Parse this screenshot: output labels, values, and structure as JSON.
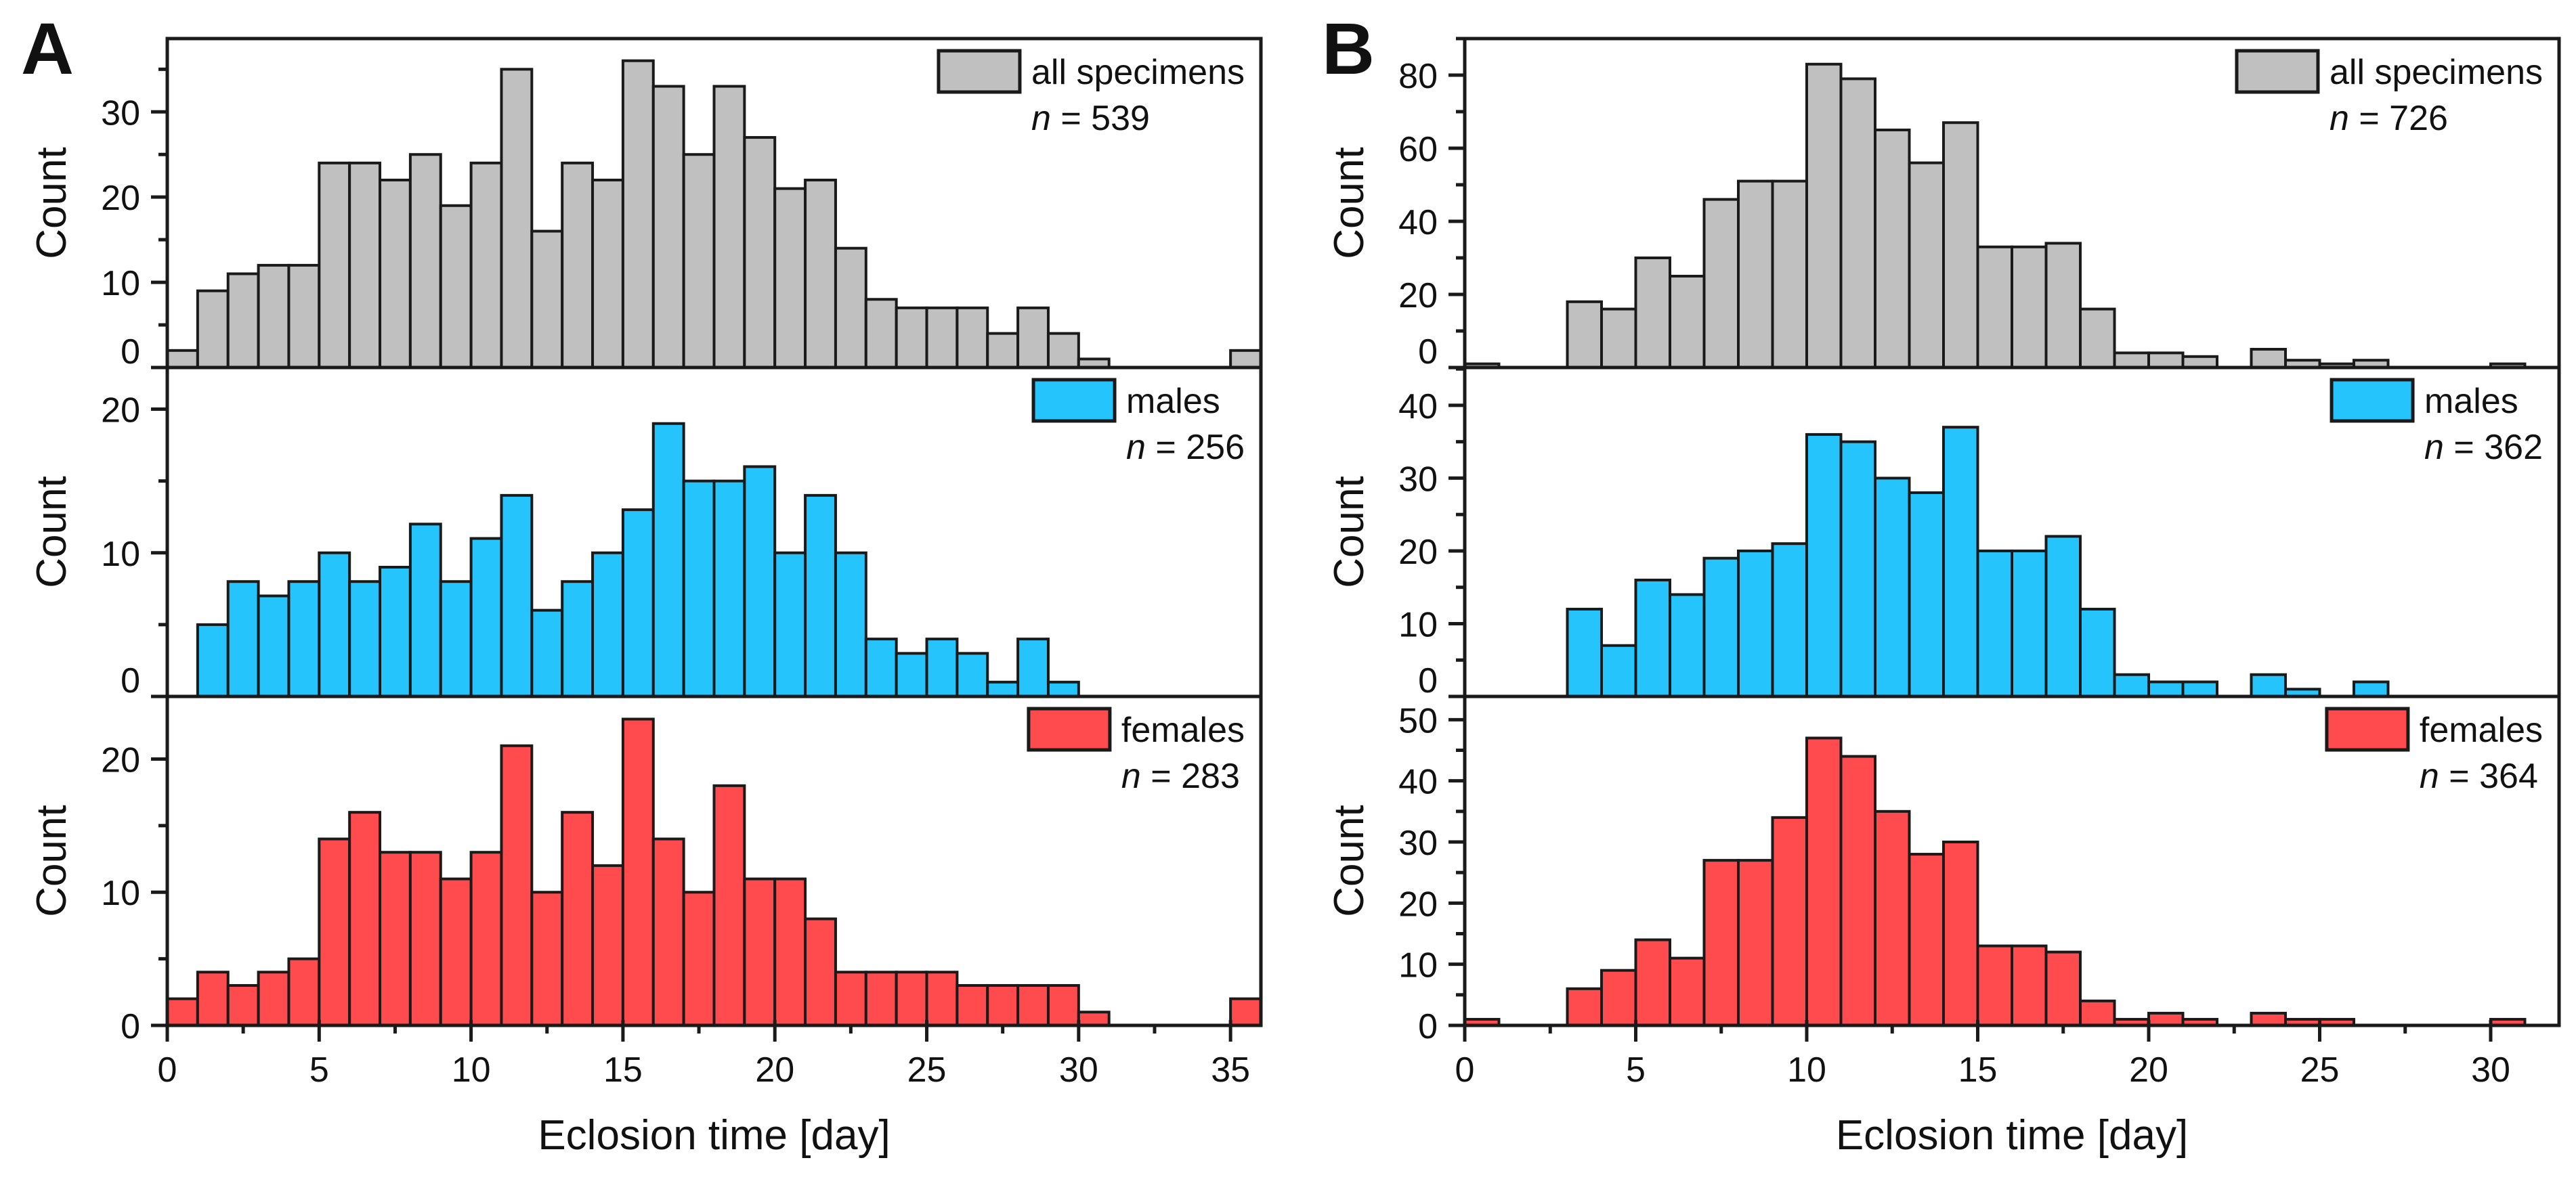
{
  "chart_data": [
    {
      "panel_label": "A",
      "type": "bar",
      "xlabel": "Eclosion time [day]",
      "xlim": [
        0,
        36
      ],
      "xticks": [
        0,
        5,
        10,
        15,
        20,
        25,
        30,
        35
      ],
      "bin_width": 1,
      "subplots": [
        {
          "ylabel": "Count",
          "legend": "all specimens",
          "n_label": "n = 539",
          "color": "#c0c0c0",
          "ylim": [
            0,
            38.6
          ],
          "yticks": [
            0,
            10,
            20,
            30
          ],
          "values": [
            2,
            9,
            11,
            12,
            12,
            24,
            24,
            22,
            25,
            19,
            24,
            35,
            16,
            24,
            22,
            36,
            33,
            25,
            33,
            27,
            21,
            22,
            14,
            8,
            7,
            7,
            7,
            4,
            7,
            4,
            1,
            0,
            0,
            0,
            0,
            2
          ]
        },
        {
          "ylabel": "Count",
          "legend": "males",
          "n_label": "n = 256",
          "color": "#26c4fc",
          "ylim": [
            0,
            22.9
          ],
          "yticks": [
            0,
            10,
            20
          ],
          "values": [
            0,
            5,
            8,
            7,
            8,
            10,
            8,
            9,
            12,
            8,
            11,
            14,
            6,
            8,
            10,
            13,
            19,
            15,
            15,
            16,
            10,
            14,
            10,
            4,
            3,
            4,
            3,
            1,
            4,
            1,
            0,
            0,
            0,
            0,
            0,
            0
          ]
        },
        {
          "ylabel": "Count",
          "legend": "females",
          "n_label": "n = 283",
          "color": "#ff4b4d",
          "ylim": [
            0,
            24.7
          ],
          "yticks": [
            0,
            10,
            20
          ],
          "values": [
            2,
            4,
            3,
            4,
            5,
            14,
            16,
            13,
            13,
            11,
            13,
            21,
            10,
            16,
            12,
            23,
            14,
            10,
            18,
            11,
            11,
            8,
            4,
            4,
            4,
            4,
            3,
            3,
            3,
            3,
            1,
            0,
            0,
            0,
            0,
            2
          ]
        }
      ]
    },
    {
      "panel_label": "B",
      "type": "bar",
      "xlabel": "Eclosion time [day]",
      "xlim": [
        0,
        32
      ],
      "xticks": [
        0,
        5,
        10,
        15,
        20,
        25,
        30
      ],
      "bin_width": 1,
      "subplots": [
        {
          "ylabel": "Count",
          "legend": "all specimens",
          "n_label": "n = 726",
          "color": "#c0c0c0",
          "ylim": [
            0,
            90
          ],
          "yticks": [
            0,
            20,
            40,
            60,
            80
          ],
          "values": [
            1,
            0,
            0,
            18,
            16,
            30,
            25,
            46,
            51,
            51,
            83,
            79,
            65,
            56,
            67,
            33,
            33,
            34,
            16,
            4,
            4,
            3,
            0,
            5,
            2,
            1,
            2,
            0,
            0,
            0,
            1
          ]
        },
        {
          "ylabel": "Count",
          "legend": "males",
          "n_label": "n = 362",
          "color": "#26c4fc",
          "ylim": [
            0,
            45.2
          ],
          "yticks": [
            0,
            10,
            20,
            30,
            40
          ],
          "values": [
            0,
            0,
            0,
            12,
            7,
            16,
            14,
            19,
            20,
            21,
            36,
            35,
            30,
            28,
            37,
            20,
            20,
            22,
            12,
            3,
            2,
            2,
            0,
            3,
            1,
            0,
            2,
            0,
            0,
            0,
            0
          ]
        },
        {
          "ylabel": "Count",
          "legend": "females",
          "n_label": "n = 364",
          "color": "#ff4b4d",
          "ylim": [
            0,
            53.8
          ],
          "yticks": [
            0,
            10,
            20,
            30,
            40,
            50
          ],
          "values": [
            1,
            0,
            0,
            6,
            9,
            14,
            11,
            27,
            27,
            34,
            47,
            44,
            35,
            28,
            30,
            13,
            13,
            12,
            4,
            1,
            2,
            1,
            0,
            2,
            1,
            1,
            0,
            0,
            0,
            0,
            1
          ]
        }
      ]
    }
  ]
}
